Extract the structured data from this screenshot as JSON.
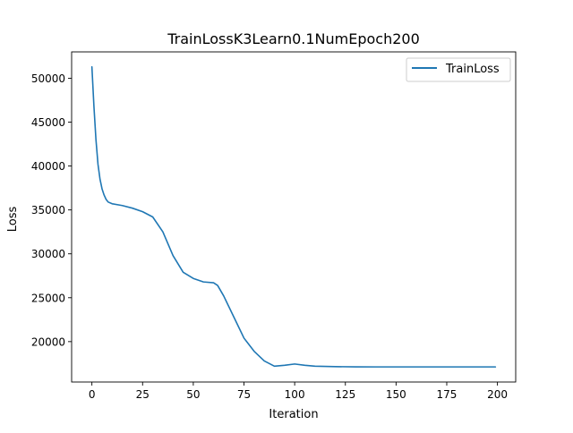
{
  "chart_data": {
    "type": "line",
    "title": "TrainLossK3Learn0.1NumEpoch200",
    "xlabel": "Iteration",
    "ylabel": "Loss",
    "xlim": [
      -10,
      209
    ],
    "ylim": [
      15400,
      53000
    ],
    "xticks": [
      0,
      25,
      50,
      75,
      100,
      125,
      150,
      175,
      200
    ],
    "yticks": [
      20000,
      25000,
      30000,
      35000,
      40000,
      45000,
      50000
    ],
    "grid": false,
    "legend_position": "top-right",
    "series": [
      {
        "name": "TrainLoss",
        "color": "#1f77b4",
        "x": [
          0,
          1,
          2,
          3,
          4,
          5,
          6,
          7,
          8,
          10,
          15,
          20,
          25,
          30,
          35,
          40,
          45,
          50,
          55,
          60,
          62,
          65,
          70,
          75,
          80,
          85,
          90,
          95,
          100,
          105,
          110,
          120,
          130,
          140,
          150,
          160,
          170,
          180,
          190,
          199
        ],
        "y": [
          51300,
          46800,
          43000,
          40200,
          38500,
          37400,
          36700,
          36200,
          35900,
          35700,
          35500,
          35200,
          34800,
          34200,
          32500,
          29800,
          27900,
          27200,
          26800,
          26700,
          26400,
          25200,
          22800,
          20400,
          18900,
          17800,
          17200,
          17300,
          17450,
          17300,
          17200,
          17150,
          17130,
          17120,
          17120,
          17120,
          17120,
          17120,
          17120,
          17120
        ]
      }
    ]
  }
}
